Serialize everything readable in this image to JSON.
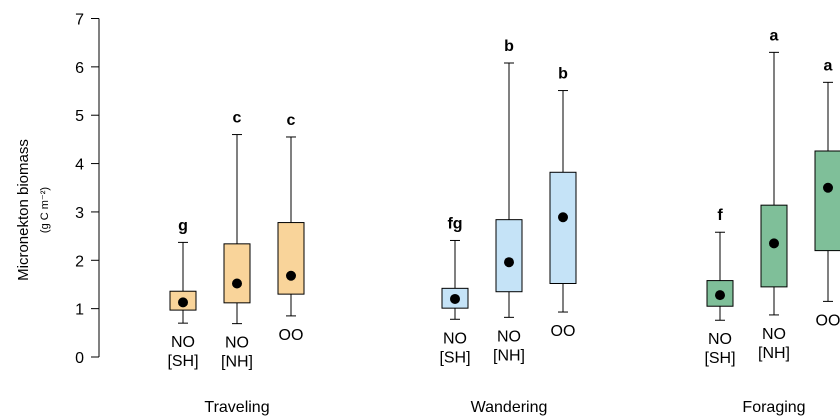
{
  "chart_data": {
    "type": "boxplot",
    "ylabel": "Micronekton biomass",
    "ylabel_units": "(g C m⁻²)",
    "ylim": [
      0,
      7
    ],
    "yticks": [
      0,
      1,
      2,
      3,
      4,
      5,
      6,
      7
    ],
    "colors": {
      "Traveling": "#f9d49a",
      "Wandering": "#c5e3f7",
      "Foraging": "#7fbf99"
    },
    "groups": [
      {
        "name": "Traveling",
        "boxes": [
          {
            "label": [
              "NO",
              "[SH]"
            ],
            "whisker_low": 0.7,
            "q1": 0.97,
            "median": 1.13,
            "q3": 1.36,
            "whisker_high": 2.37,
            "letter": "g"
          },
          {
            "label": [
              "NO",
              "[NH]"
            ],
            "whisker_low": 0.69,
            "q1": 1.12,
            "median": 1.52,
            "q3": 2.34,
            "whisker_high": 4.6,
            "letter": "c"
          },
          {
            "label": [
              "OO"
            ],
            "whisker_low": 0.85,
            "q1": 1.3,
            "median": 1.68,
            "q3": 2.78,
            "whisker_high": 4.55,
            "letter": "c"
          }
        ]
      },
      {
        "name": "Wandering",
        "boxes": [
          {
            "label": [
              "NO",
              "[SH]"
            ],
            "whisker_low": 0.78,
            "q1": 1.01,
            "median": 1.2,
            "q3": 1.42,
            "whisker_high": 2.41,
            "letter": "fg"
          },
          {
            "label": [
              "NO",
              "[NH]"
            ],
            "whisker_low": 0.82,
            "q1": 1.35,
            "median": 1.96,
            "q3": 2.84,
            "whisker_high": 6.08,
            "letter": "b"
          },
          {
            "label": [
              "OO"
            ],
            "whisker_low": 0.93,
            "q1": 1.52,
            "median": 2.89,
            "q3": 3.82,
            "whisker_high": 5.51,
            "letter": "b"
          }
        ]
      },
      {
        "name": "Foraging",
        "boxes": [
          {
            "label": [
              "NO",
              "[SH]"
            ],
            "whisker_low": 0.76,
            "q1": 1.05,
            "median": 1.28,
            "q3": 1.58,
            "whisker_high": 2.58,
            "letter": "f"
          },
          {
            "label": [
              "NO",
              "[NH]"
            ],
            "whisker_low": 0.87,
            "q1": 1.45,
            "median": 2.35,
            "q3": 3.14,
            "whisker_high": 6.3,
            "letter": "a"
          },
          {
            "label": [
              "OO"
            ],
            "whisker_low": 1.15,
            "q1": 2.2,
            "median": 3.5,
            "q3": 4.26,
            "whisker_high": 5.68,
            "letter": "a"
          }
        ]
      }
    ]
  }
}
